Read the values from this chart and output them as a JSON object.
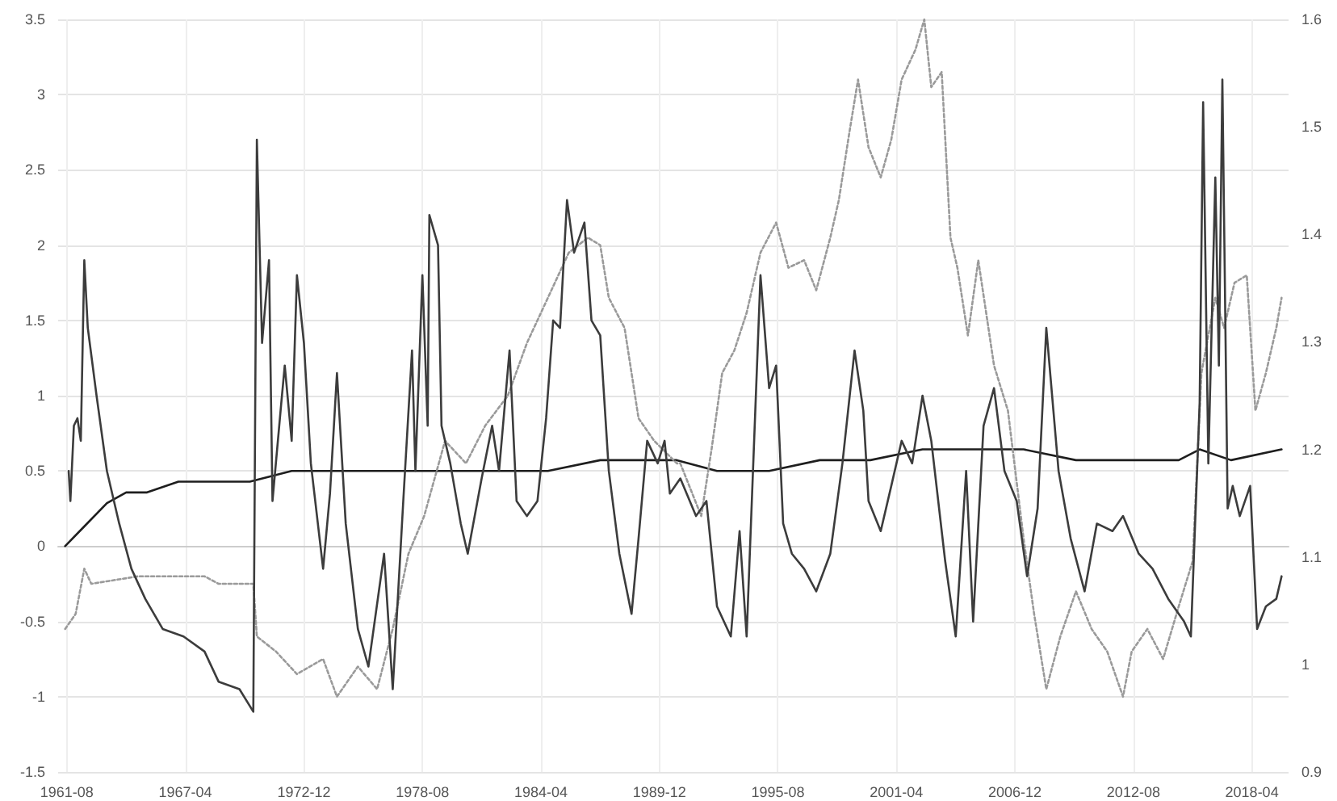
{
  "chart_data": {
    "type": "line",
    "xlim": [
      "1961-03",
      "2020-01"
    ],
    "xticks": [
      "1961-08",
      "1967-04",
      "1972-12",
      "1978-08",
      "1984-04",
      "1989-12",
      "1995-08",
      "2001-04",
      "2006-12",
      "2012-08",
      "2018-04"
    ],
    "ylim": [
      -1.5,
      3.5
    ],
    "yticks": [
      -1.5,
      -1,
      -0.5,
      0,
      0.5,
      1,
      1.5,
      2,
      2.5,
      3,
      3.5
    ],
    "y2lim": [
      0.9,
      1.6
    ],
    "y2ticks": [
      0.9,
      1,
      1.1,
      1.2,
      1.3,
      1.4,
      1.5,
      1.6
    ],
    "grid": true,
    "marker": "none",
    "series": [
      {
        "color": "#3c3c3c",
        "line_style": "solid",
        "x": [
          "1961-09",
          "1961-10",
          "1961-12",
          "1962-02",
          "1962-04",
          "1962-06",
          "1962-08",
          "1963-01",
          "1963-07",
          "1964-02",
          "1964-09",
          "1965-05",
          "1966-03",
          "1967-03",
          "1968-03",
          "1968-11",
          "1969-11",
          "1970-07",
          "1970-09",
          "1970-12",
          "1971-04",
          "1971-06",
          "1971-11",
          "1972-01",
          "1972-05",
          "1972-08",
          "1972-12",
          "1973-04",
          "1973-11",
          "1974-03",
          "1974-07",
          "1974-12",
          "1975-07",
          "1976-01",
          "1976-10",
          "1977-03",
          "1977-09",
          "1978-02",
          "1978-04",
          "1978-08",
          "1978-11",
          "1978-12",
          "1979-05",
          "1979-07",
          "1979-12",
          "1980-06",
          "1980-10",
          "1981-06",
          "1981-12",
          "1982-04",
          "1982-10",
          "1983-02",
          "1983-08",
          "1984-02",
          "1984-07",
          "1984-11",
          "1985-03",
          "1985-07",
          "1985-11",
          "1986-05",
          "1986-09",
          "1987-02",
          "1987-07",
          "1988-01",
          "1988-08",
          "1988-12",
          "1989-05",
          "1989-11",
          "1990-03",
          "1990-06",
          "1990-12",
          "1991-09",
          "1992-03",
          "1992-09",
          "1993-05",
          "1993-10",
          "1994-02",
          "1994-10",
          "1995-03",
          "1995-07",
          "1995-11",
          "1996-04",
          "1996-11",
          "1997-06",
          "1998-02",
          "1998-09",
          "1999-04",
          "1999-09",
          "1999-12",
          "2000-07",
          "2001-01",
          "2001-07",
          "2002-01",
          "2002-07",
          "2002-12",
          "2003-08",
          "2004-02",
          "2004-08",
          "2004-12",
          "2005-06",
          "2005-12",
          "2006-06",
          "2007-01",
          "2007-07",
          "2008-01",
          "2008-06",
          "2009-01",
          "2009-08",
          "2010-04",
          "2010-11",
          "2011-08",
          "2012-02",
          "2012-11",
          "2013-07",
          "2014-04",
          "2015-01",
          "2015-05",
          "2015-10",
          "2015-12",
          "2016-03",
          "2016-07",
          "2016-09",
          "2016-11",
          "2017-02",
          "2017-05",
          "2017-09",
          "2018-03",
          "2018-07",
          "2018-12",
          "2019-06",
          "2019-09"
        ],
        "values": [
          0.5,
          0.3,
          0.8,
          0.85,
          0.7,
          1.9,
          1.45,
          1.0,
          0.5,
          0.15,
          -0.15,
          -0.35,
          -0.55,
          -0.6,
          -0.7,
          -0.9,
          -0.95,
          -1.1,
          2.7,
          1.35,
          1.9,
          0.3,
          0.95,
          1.2,
          0.7,
          1.8,
          1.35,
          0.55,
          -0.15,
          0.35,
          1.15,
          0.15,
          -0.55,
          -0.8,
          -0.05,
          -0.95,
          0.3,
          1.3,
          0.5,
          1.8,
          0.8,
          2.2,
          2.0,
          0.8,
          0.55,
          0.15,
          -0.05,
          0.45,
          0.8,
          0.5,
          1.3,
          0.3,
          0.2,
          0.3,
          0.85,
          1.5,
          1.45,
          2.3,
          1.95,
          2.15,
          1.5,
          1.4,
          0.5,
          -0.05,
          -0.45,
          0.05,
          0.7,
          0.55,
          0.7,
          0.35,
          0.45,
          0.2,
          0.3,
          -0.4,
          -0.6,
          0.1,
          -0.6,
          1.8,
          1.05,
          1.2,
          0.15,
          -0.05,
          -0.15,
          -0.3,
          -0.05,
          0.55,
          1.3,
          0.9,
          0.3,
          0.1,
          0.4,
          0.7,
          0.55,
          1.0,
          0.7,
          -0.1,
          -0.6,
          0.5,
          -0.5,
          0.8,
          1.05,
          0.5,
          0.3,
          -0.2,
          0.25,
          1.45,
          0.5,
          0.05,
          -0.3,
          0.15,
          0.1,
          0.2,
          -0.05,
          -0.15,
          -0.35,
          -0.5,
          -0.6,
          0.95,
          2.95,
          0.55,
          2.45,
          1.2,
          3.1,
          0.25,
          0.4,
          0.2,
          0.4,
          -0.55,
          -0.4,
          -0.35,
          -0.2
        ]
      },
      {
        "color": "#9a9a9a",
        "line_style": "dotted",
        "x": [
          "1961-07",
          "1962-01",
          "1962-06",
          "1962-10",
          "1965-01",
          "1968-03",
          "1968-11",
          "1970-07",
          "1970-09",
          "1971-08",
          "1972-08",
          "1973-11",
          "1974-07",
          "1975-07",
          "1976-06",
          "1977-03",
          "1977-12",
          "1978-09",
          "1979-09",
          "1980-09",
          "1981-08",
          "1982-09",
          "1983-08",
          "1984-08",
          "1985-08",
          "1986-07",
          "1987-02",
          "1987-07",
          "1988-04",
          "1988-12",
          "1989-09",
          "1990-10",
          "1990-12",
          "1991-12",
          "1992-06",
          "1992-12",
          "1993-07",
          "1994-02",
          "1994-10",
          "1995-07",
          "1996-02",
          "1996-11",
          "1997-06",
          "1998-02",
          "1998-07",
          "1999-01",
          "1999-06",
          "1999-12",
          "2000-07",
          "2001-01",
          "2001-07",
          "2002-03",
          "2002-08",
          "2002-12",
          "2003-06",
          "2003-11",
          "2004-03",
          "2004-09",
          "2005-03",
          "2005-12",
          "2006-08",
          "2007-05",
          "2007-11",
          "2008-06",
          "2009-02",
          "2009-11",
          "2010-08",
          "2011-05",
          "2012-02",
          "2012-07",
          "2013-04",
          "2014-01",
          "2014-10",
          "2015-06",
          "2015-11",
          "2016-07",
          "2016-12",
          "2017-06",
          "2018-01",
          "2018-06",
          "2018-12",
          "2019-06",
          "2019-09"
        ],
        "values": [
          -0.55,
          -0.45,
          -0.15,
          -0.25,
          -0.2,
          -0.2,
          -0.25,
          -0.25,
          -0.6,
          -0.7,
          -0.85,
          -0.75,
          -1.0,
          -0.8,
          -0.95,
          -0.55,
          -0.05,
          0.2,
          0.7,
          0.55,
          0.8,
          1.0,
          1.35,
          1.65,
          1.95,
          2.05,
          2.0,
          1.65,
          1.45,
          0.85,
          0.7,
          0.55,
          0.55,
          0.2,
          0.65,
          1.15,
          1.3,
          1.55,
          1.95,
          2.15,
          1.85,
          1.9,
          1.7,
          2.05,
          2.3,
          2.75,
          3.1,
          2.65,
          2.45,
          2.7,
          3.1,
          3.3,
          3.5,
          3.05,
          3.15,
          2.05,
          1.85,
          1.4,
          1.9,
          1.2,
          0.9,
          0.05,
          -0.45,
          -0.95,
          -0.6,
          -0.3,
          -0.55,
          -0.7,
          -1.0,
          -0.7,
          -0.55,
          -0.75,
          -0.4,
          -0.1,
          1.15,
          1.65,
          1.45,
          1.75,
          1.8,
          0.9,
          1.15,
          1.45,
          1.65
        ]
      },
      {
        "color": "#1e1e1e",
        "line_style": "solid",
        "axis": "y2",
        "x": [
          "1961-07",
          "1962-07",
          "1963-07",
          "1964-06",
          "1965-06",
          "1966-12",
          "1968-05",
          "1970-05",
          "1972-05",
          "1974-10",
          "1977-03",
          "1979-09",
          "1982-02",
          "1984-08",
          "1987-02",
          "1990-10",
          "1992-09",
          "1995-03",
          "1997-08",
          "2000-01",
          "2002-07",
          "2004-12",
          "2007-05",
          "2009-11",
          "2012-04",
          "2014-10",
          "2015-10",
          "2017-04",
          "2019-09"
        ],
        "values": [
          1.11,
          1.13,
          1.15,
          1.16,
          1.16,
          1.17,
          1.17,
          1.17,
          1.18,
          1.18,
          1.18,
          1.18,
          1.18,
          1.18,
          1.19,
          1.19,
          1.18,
          1.18,
          1.19,
          1.19,
          1.2,
          1.2,
          1.2,
          1.19,
          1.19,
          1.19,
          1.2,
          1.19,
          1.2
        ]
      }
    ]
  }
}
